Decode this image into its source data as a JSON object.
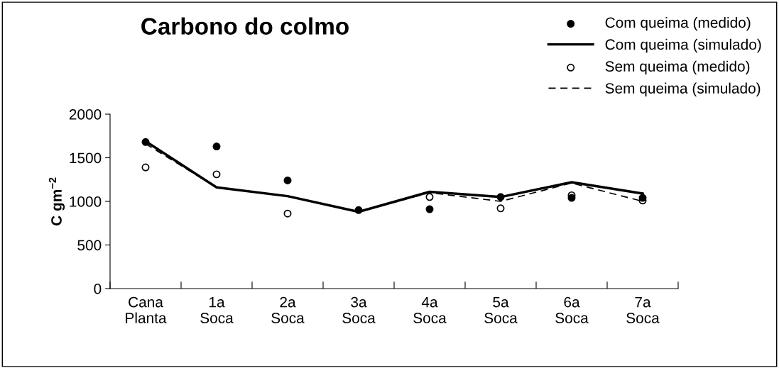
{
  "chart_data": {
    "type": "line",
    "title": "Carbono do colmo",
    "ylabel": "C gm$^{−2}$",
    "categories": [
      "Cana\nPlanta",
      "1a\nSoca",
      "2a\nSoca",
      "3a\nSoca",
      "4a\nSoca",
      "5a\nSoca",
      "6a\nSoca",
      "7a\nSoca"
    ],
    "series": [
      {
        "name": "Com queima (medido)",
        "type": "scatter",
        "marker": "circle",
        "color": "#000000",
        "values": [
          1680,
          1630,
          1240,
          900,
          910,
          1050,
          1040,
          1040
        ]
      },
      {
        "name": "Com queima (simulado)",
        "line_style": "solid",
        "color": "#000000",
        "values": [
          1690,
          1160,
          1060,
          880,
          1110,
          1050,
          1220,
          1090
        ]
      },
      {
        "name": "Sem queima (medido)",
        "type": "scatter",
        "marker": "circle",
        "color": "#ffffff",
        "values": [
          1390,
          1310,
          860,
          null,
          1050,
          920,
          1070,
          1010
        ]
      },
      {
        "name": "Sem queima (simulado)",
        "line_style": "dashed",
        "color": "#000000",
        "values": [
          1660,
          1160,
          1060,
          880,
          1100,
          1000,
          1210,
          1000
        ]
      }
    ],
    "ylim": [
      0,
      2000
    ],
    "yticks": [
      0,
      500,
      1000,
      1500,
      2000
    ],
    "legend": "top right"
  }
}
